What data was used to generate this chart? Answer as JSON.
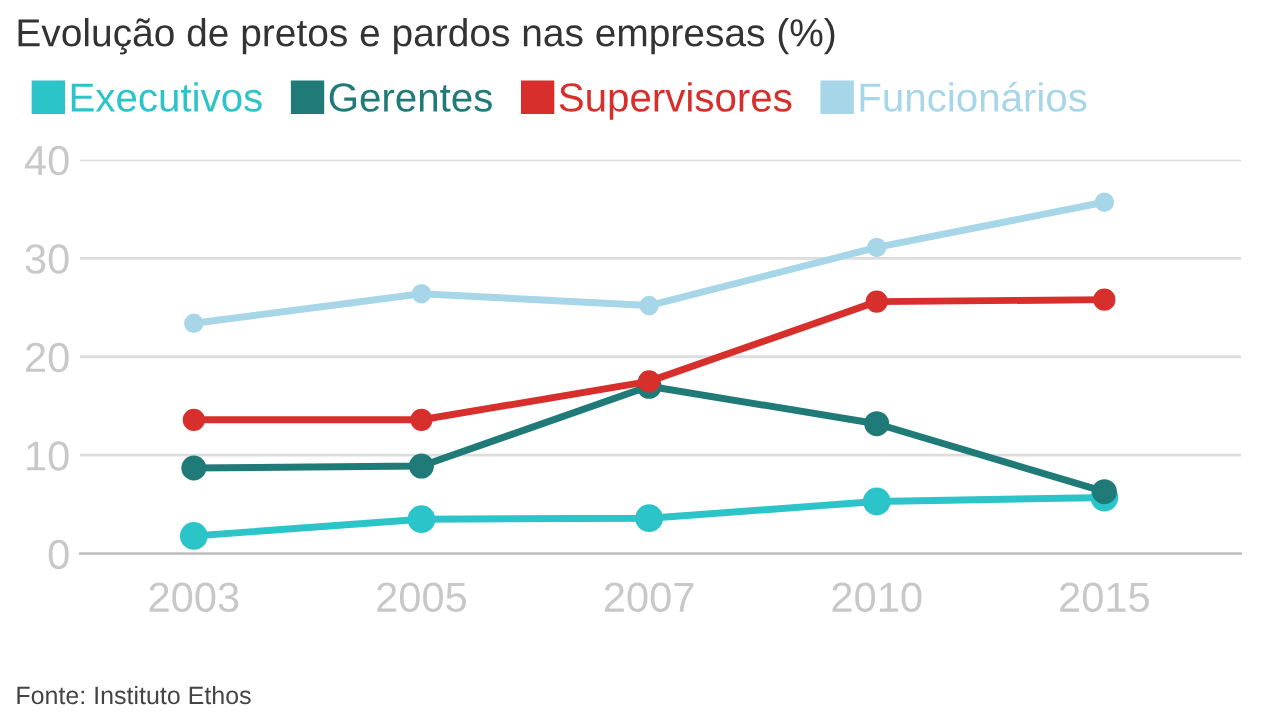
{
  "chart_data": {
    "type": "line",
    "title": "Evolução de pretos e pardos nas empresas (%)",
    "categories": [
      "2003",
      "2005",
      "2007",
      "2010",
      "2015"
    ],
    "series": [
      {
        "name": "Executivos",
        "color": "#2bc4c9",
        "values": [
          1.8,
          3.5,
          3.6,
          5.3,
          5.7
        ]
      },
      {
        "name": "Gerentes",
        "color": "#1f7a78",
        "values": [
          8.7,
          8.9,
          17.0,
          13.2,
          6.3
        ]
      },
      {
        "name": "Supervisores",
        "color": "#d72f2b",
        "values": [
          13.6,
          13.6,
          17.5,
          25.6,
          25.8
        ]
      },
      {
        "name": "Funcionários",
        "color": "#a6d6e8",
        "values": [
          23.4,
          26.4,
          25.2,
          31.1,
          35.7
        ]
      }
    ],
    "ylim": [
      0,
      40
    ],
    "yticks": [
      0,
      10,
      20,
      30,
      40
    ],
    "grid": "y",
    "legend": "top left",
    "marker": "circle",
    "line_style": "solid",
    "annotations": [
      "Fonte: Instituto Ethos"
    ]
  }
}
